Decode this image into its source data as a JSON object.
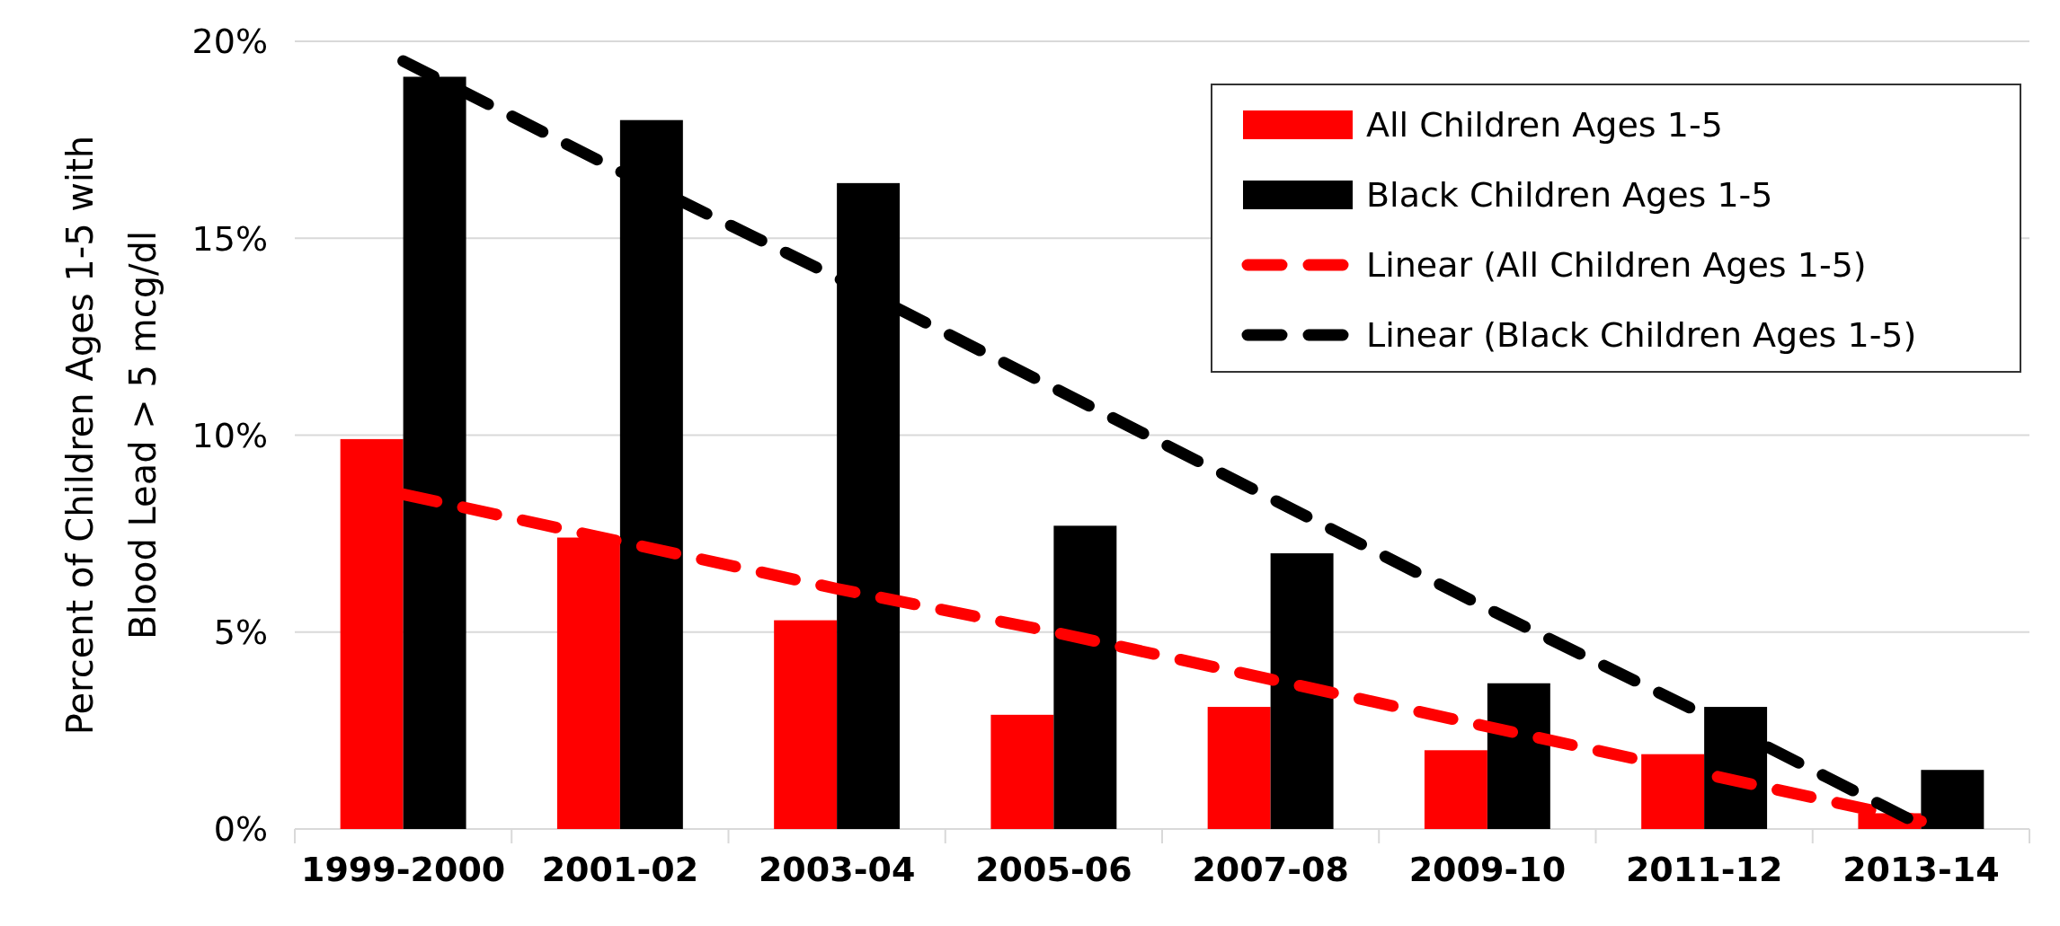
{
  "chart_data": {
    "type": "bar",
    "ylabel": "Percent of Children Ages 1-5 with\nBlood Lead > 5 mcg/dl",
    "categories": [
      "1999-2000",
      "2001-02",
      "2003-04",
      "2005-06",
      "2007-08",
      "2009-10",
      "2011-12",
      "2013-14"
    ],
    "series": [
      {
        "name": "All Children Ages 1-5",
        "color": "#ff0000",
        "values": [
          9.9,
          7.4,
          5.3,
          2.9,
          3.1,
          2.0,
          1.9,
          0.4
        ]
      },
      {
        "name": "Black Children Ages 1-5",
        "color": "#000000",
        "values": [
          19.1,
          18.0,
          16.4,
          7.7,
          7.0,
          3.7,
          3.1,
          1.5
        ]
      },
      {
        "name": "Linear (All Children Ages 1-5)",
        "type": "line",
        "line_style": "dashed",
        "color": "#ff0000",
        "values": [
          8.5,
          7.3,
          6.1,
          5.0,
          3.8,
          2.6,
          1.4,
          0.2
        ]
      },
      {
        "name": "Linear (Black Children Ages 1-5)",
        "type": "line",
        "line_style": "dashed",
        "color": "#000000",
        "values": [
          19.5,
          16.7,
          14.0,
          11.2,
          8.4,
          5.6,
          2.9,
          0.1
        ]
      }
    ],
    "ylim": [
      0,
      20
    ],
    "yticks": [
      {
        "value": 0,
        "label": "0%"
      },
      {
        "value": 5,
        "label": "5%"
      },
      {
        "value": 10,
        "label": "10%"
      },
      {
        "value": 15,
        "label": "15%"
      },
      {
        "value": 20,
        "label": "20%"
      }
    ],
    "grid": "y",
    "legend": "top right",
    "marker": "none"
  }
}
